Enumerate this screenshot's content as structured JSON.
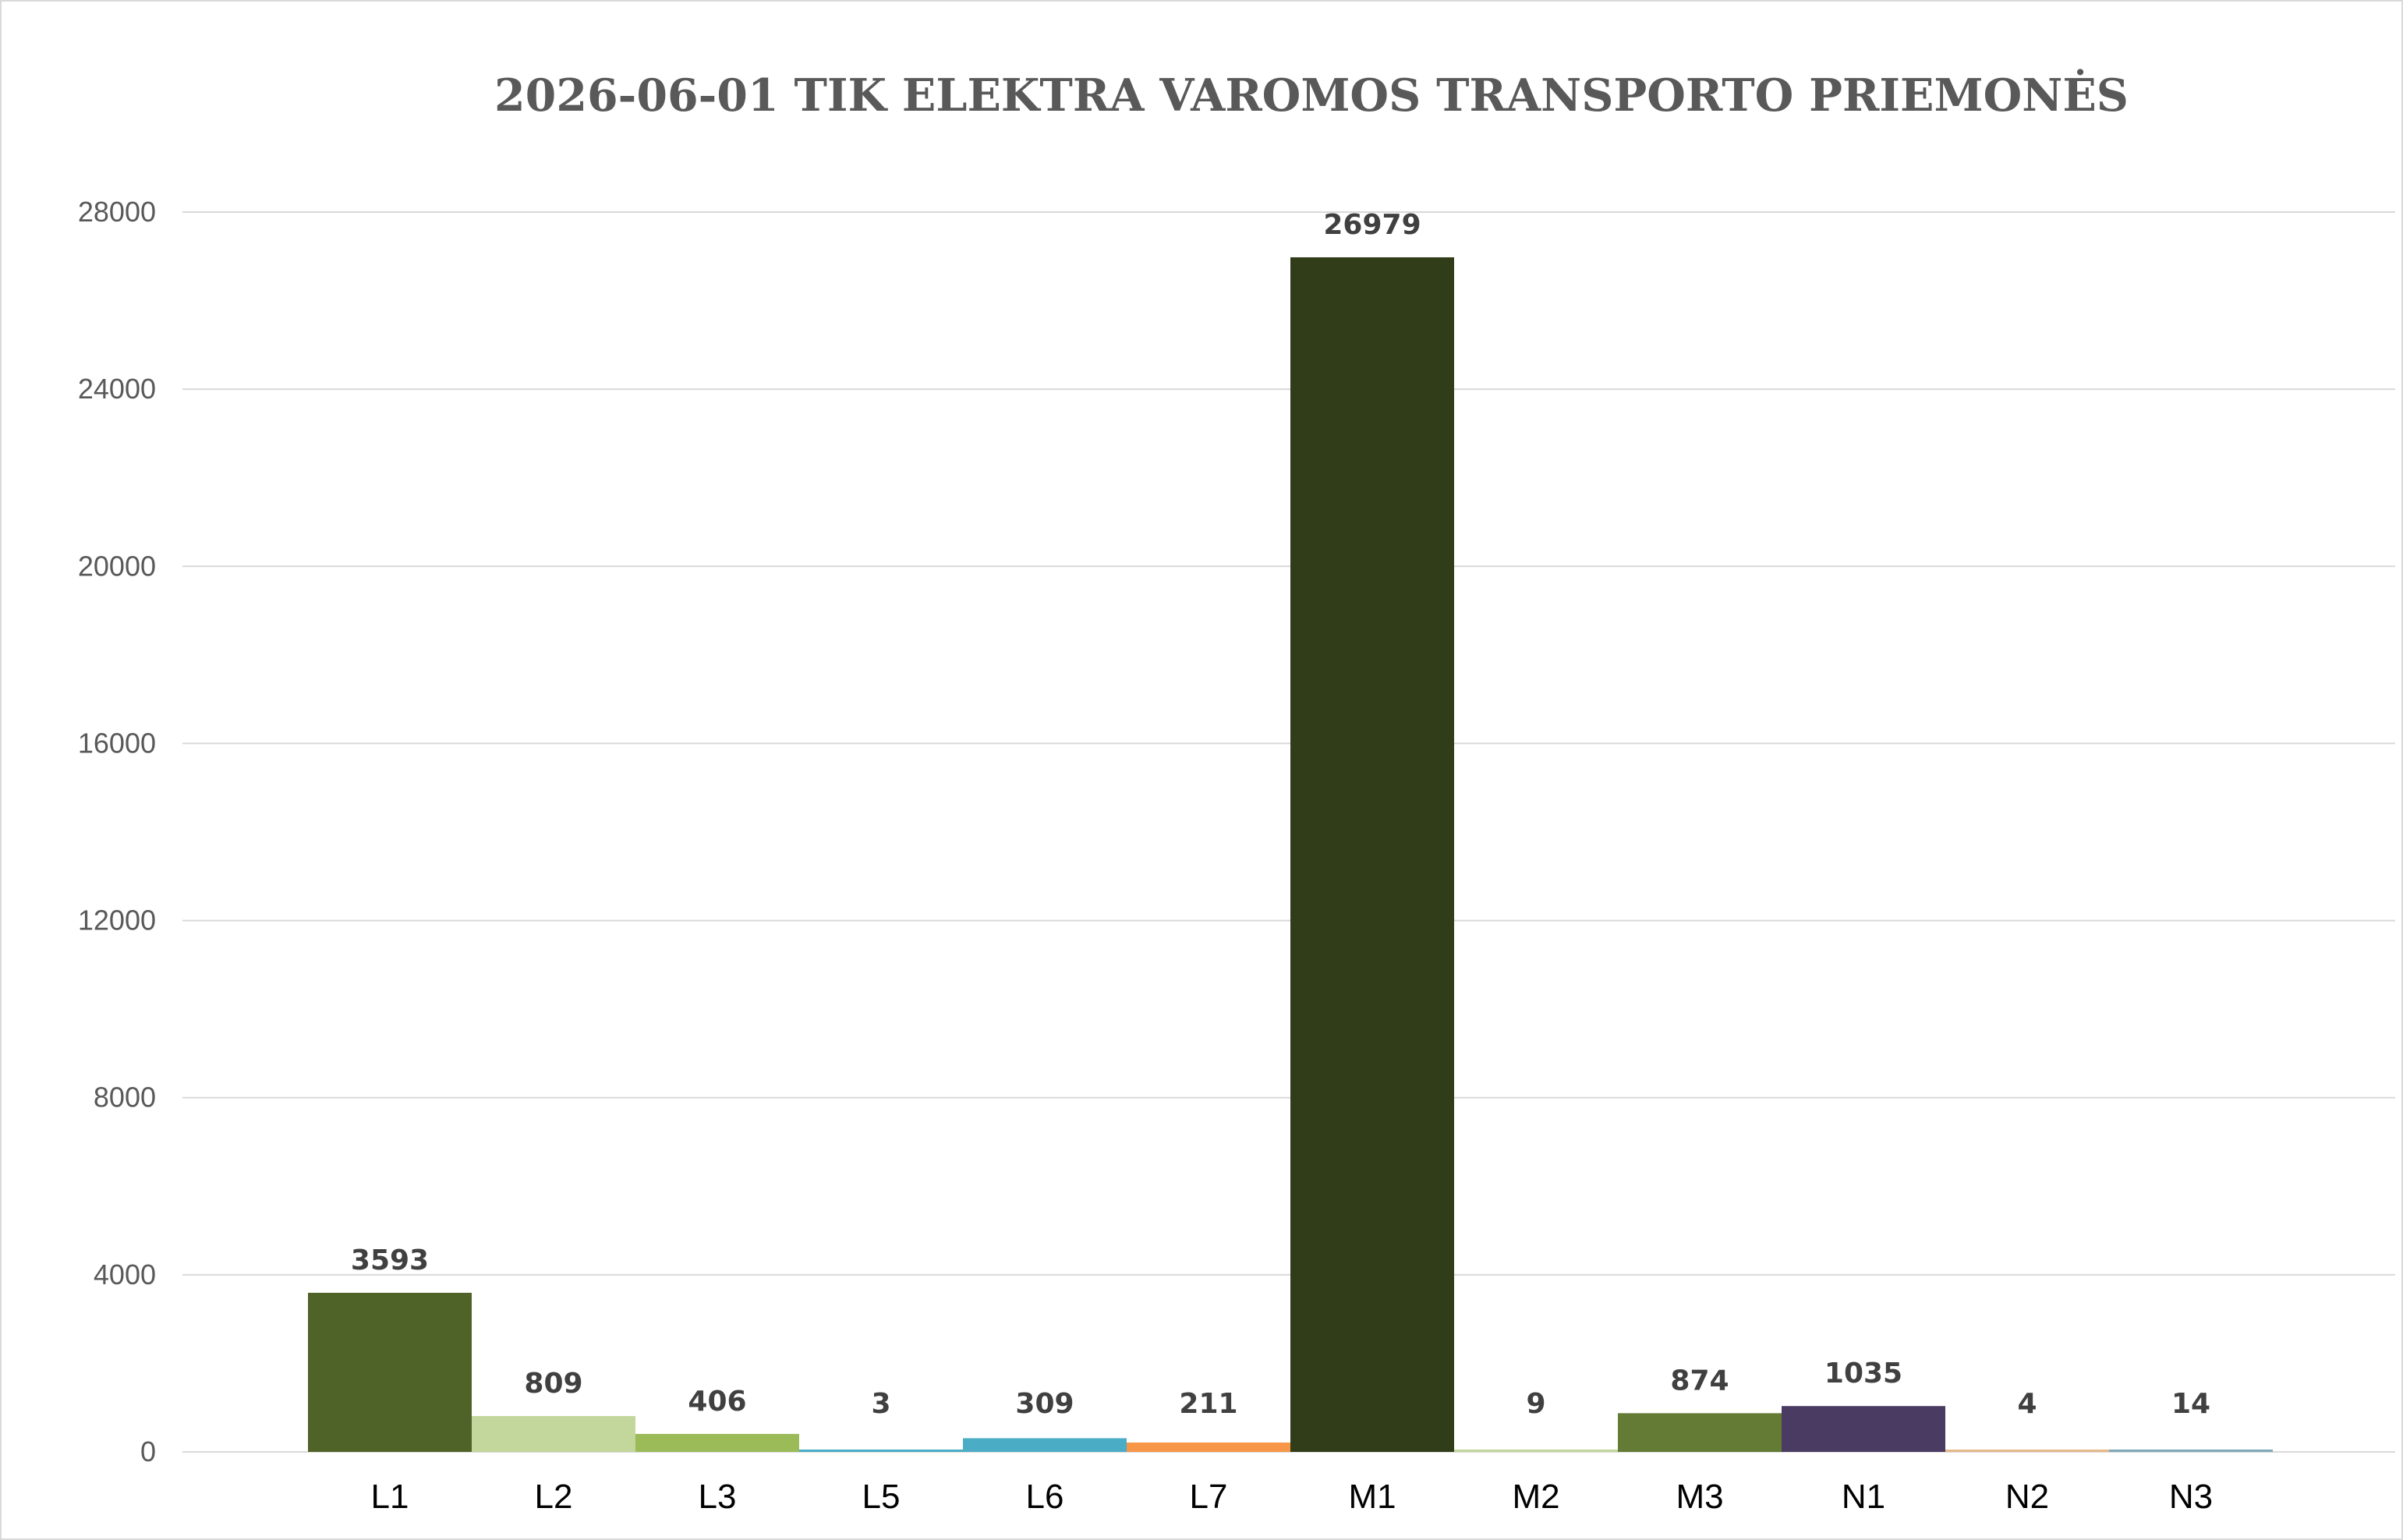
{
  "chart_data": {
    "type": "bar",
    "title": "2026-06-01 TIK ELEKTRA VAROMOS TRANSPORTO PRIEMONĖS",
    "xlabel": "",
    "ylabel": "",
    "categories": [
      "L1",
      "L2",
      "L3",
      "L5",
      "L6",
      "L7",
      "M1",
      "M2",
      "M3",
      "N1",
      "N2",
      "N3"
    ],
    "values": [
      3593,
      809,
      406,
      3,
      309,
      211,
      26979,
      9,
      874,
      1035,
      4,
      14
    ],
    "data_labels": [
      "3593",
      "809",
      "406",
      "3",
      "309",
      "211",
      "26979",
      "9",
      "874",
      "1035",
      "4",
      "14"
    ],
    "colors": [
      "#4f6228",
      "#c3d69b",
      "#9bbb59",
      "#4bacc6",
      "#4bacc6",
      "#f79646",
      "#313c19",
      "#c3d69b",
      "#637b35",
      "#4a3b62",
      "#e6b98a",
      "#7fa8b8"
    ],
    "ylim": [
      0,
      28000
    ],
    "yticks": [
      0,
      4000,
      8000,
      12000,
      16000,
      20000,
      24000,
      28000
    ],
    "ytick_labels": [
      "0",
      "4000",
      "8000",
      "12000",
      "16000",
      "20000",
      "24000",
      "28000"
    ],
    "grid": true,
    "legend": "none"
  }
}
